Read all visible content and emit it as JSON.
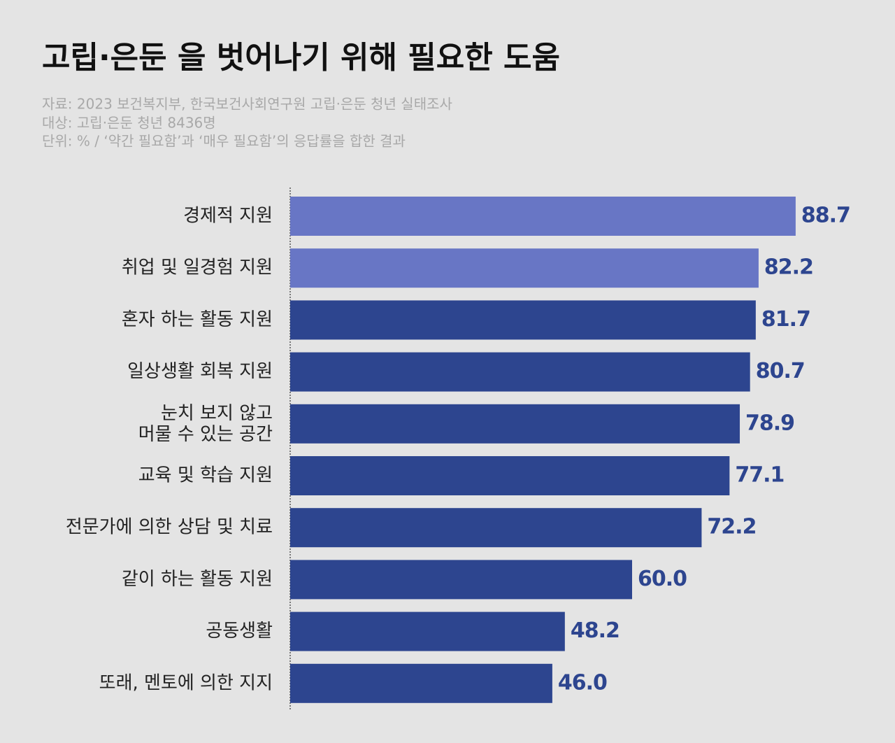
{
  "chart_data": {
    "type": "bar",
    "orientation": "horizontal",
    "title": "고립·은둔 을 벗어나기 위해 필요한 도움",
    "notes": [
      "자료: 2023 보건복지부, 한국보건사회연구원 고립·은둔 청년 실태조사",
      "대상: 고립·은둔 청년 8436명",
      "단위: % / ‘약간 필요함’과 ‘매우 필요함’의 응답률을 합한 결과"
    ],
    "categories": [
      "경제적 지원",
      "취업 및 일경험 지원",
      "혼자 하는 활동 지원",
      "일상생활 회복 지원",
      "눈치 보지 않고\n머물 수 있는 공간",
      "교육 및 학습 지원",
      "전문가에 의한 상담 및 치료",
      "같이 하는 활동 지원",
      "공동생활",
      "또래, 멘토에 의한 지지"
    ],
    "values": [
      88.7,
      82.2,
      81.7,
      80.7,
      78.9,
      77.1,
      72.2,
      60.0,
      48.2,
      46.0
    ],
    "value_labels": [
      "88.7",
      "82.2",
      "81.7",
      "80.7",
      "78.9",
      "77.1",
      "72.2",
      "60.0",
      "48.2",
      "46.0"
    ],
    "colors": [
      "#6876c5",
      "#6876c5",
      "#2d458f",
      "#2d458f",
      "#2d458f",
      "#2d458f",
      "#2d458f",
      "#2d458f",
      "#2d458f",
      "#2d458f"
    ],
    "xlim": [
      0,
      100
    ],
    "grid": false
  }
}
